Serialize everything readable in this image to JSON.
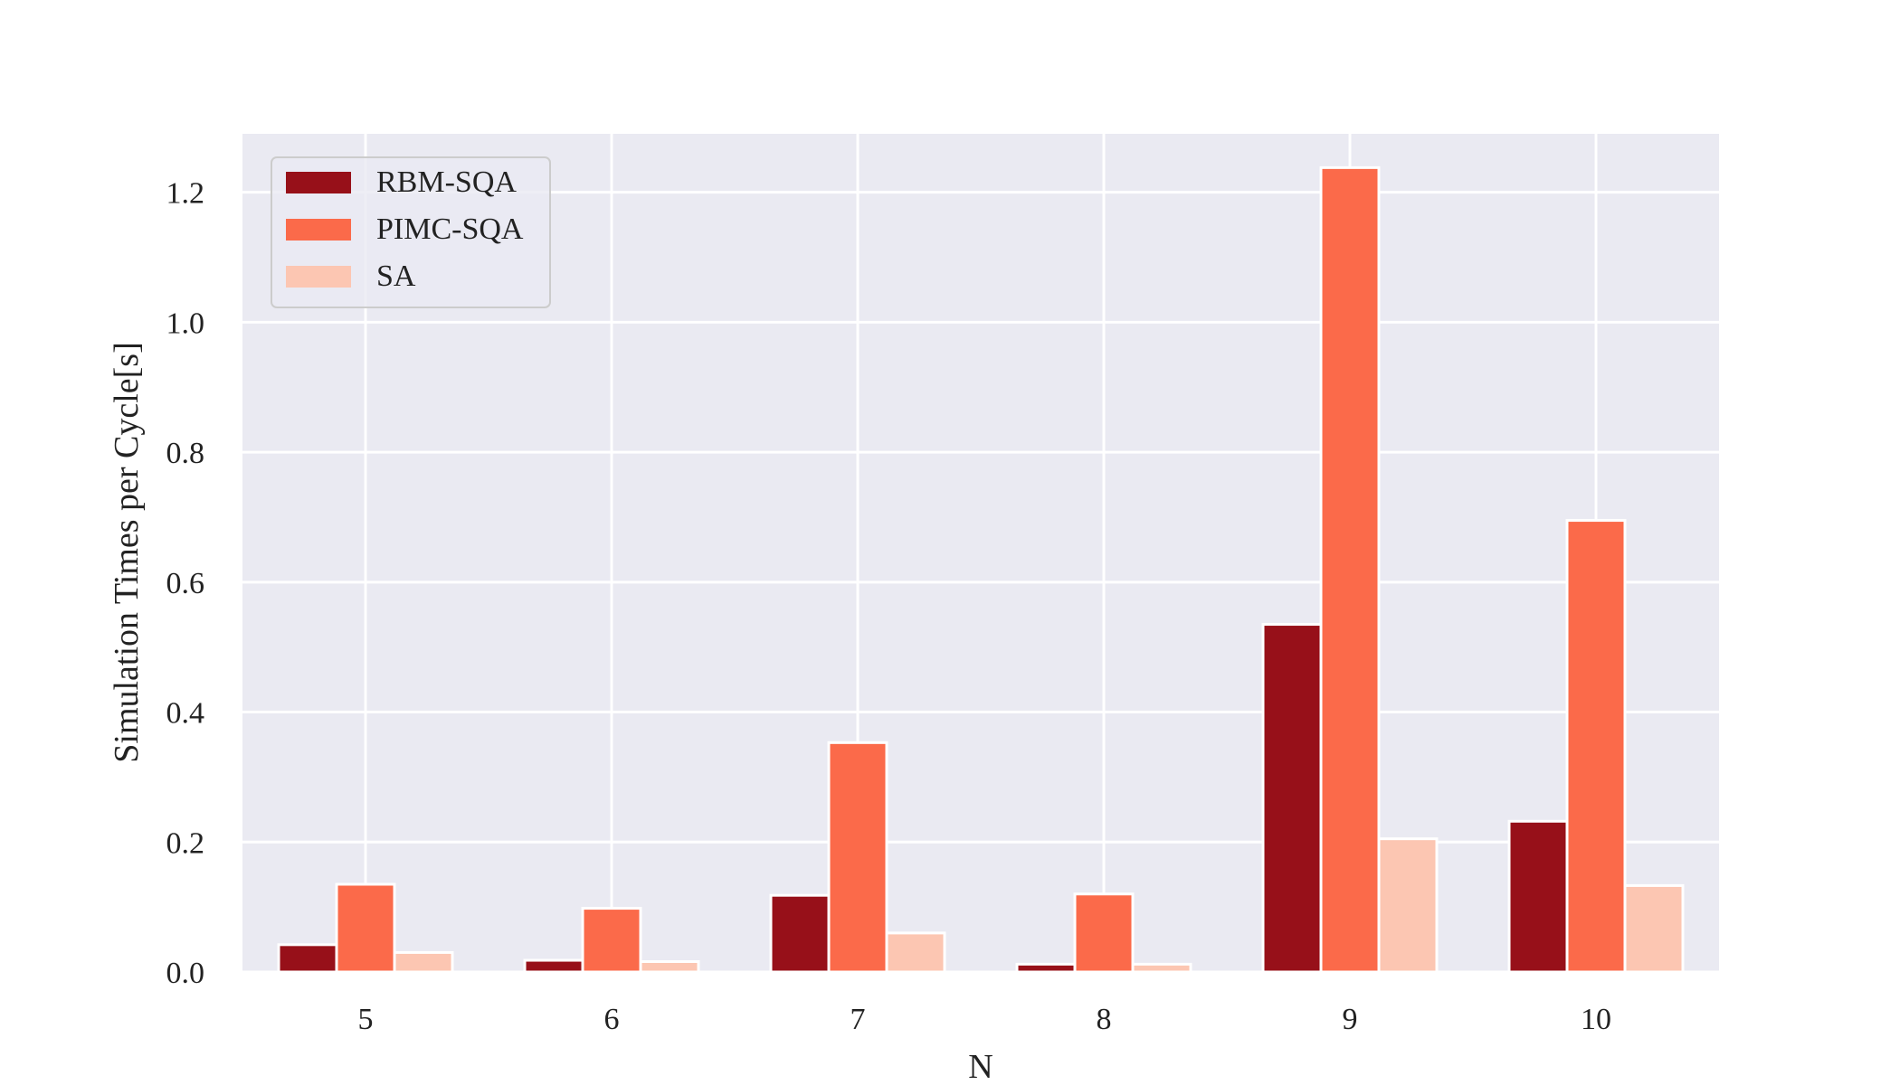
{
  "chart_data": {
    "type": "bar",
    "title": "",
    "xlabel": "N",
    "ylabel": "Simulation Times per Cycle[s]",
    "categories": [
      "5",
      "6",
      "7",
      "8",
      "9",
      "10"
    ],
    "series": [
      {
        "name": "RBM-SQA",
        "color": "#971019",
        "values": [
          0.042,
          0.018,
          0.118,
          0.012,
          0.535,
          0.232
        ]
      },
      {
        "name": "PIMC-SQA",
        "color": "#fb6a4a",
        "values": [
          0.135,
          0.098,
          0.353,
          0.12,
          1.238,
          0.695
        ]
      },
      {
        "name": "SA",
        "color": "#fcc6b2",
        "values": [
          0.03,
          0.016,
          0.06,
          0.012,
          0.205,
          0.133
        ]
      }
    ],
    "yticks": [
      "0.0",
      "0.2",
      "0.4",
      "0.6",
      "0.8",
      "1.0",
      "1.2"
    ],
    "ylim": [
      0,
      1.29
    ],
    "grid": true,
    "legend_position": "top-left",
    "background_color": "#eaeaf2"
  }
}
